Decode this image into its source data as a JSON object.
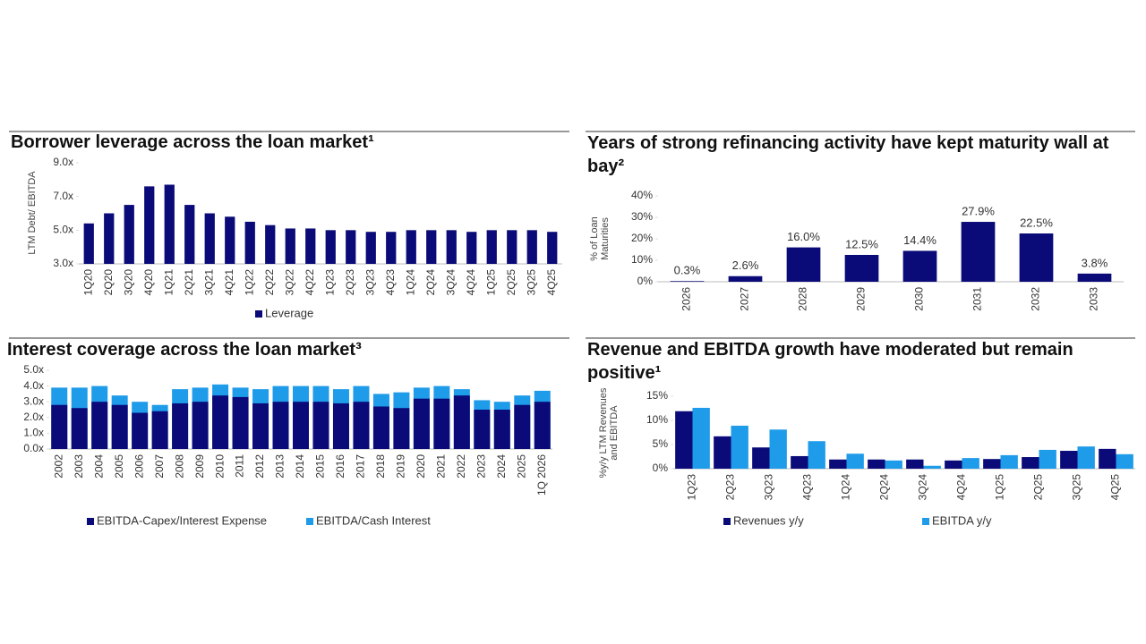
{
  "chart_data": [
    {
      "type": "bar",
      "title": "Borrower leverage across the loan market¹",
      "y_label": "LTM Debt/ EBITDA",
      "categories": [
        "1Q20",
        "2Q20",
        "3Q20",
        "4Q20",
        "1Q21",
        "2Q21",
        "3Q21",
        "4Q21",
        "1Q22",
        "2Q22",
        "3Q22",
        "4Q22",
        "1Q23",
        "2Q23",
        "3Q23",
        "4Q23",
        "1Q24",
        "2Q24",
        "3Q24",
        "4Q24",
        "1Q25",
        "2Q25",
        "3Q25",
        "4Q25"
      ],
      "series": [
        {
          "name": "Leverage",
          "color": "#0a0a78",
          "values": [
            5.4,
            6.0,
            6.5,
            7.6,
            7.7,
            6.5,
            6.0,
            5.8,
            5.5,
            5.3,
            5.1,
            5.1,
            5.0,
            5.0,
            4.9,
            4.9,
            5.0,
            5.0,
            5.0,
            4.9,
            5.0,
            5.0,
            5.0,
            4.9
          ]
        }
      ],
      "ylim": [
        3,
        9
      ],
      "yticks": [
        {
          "value": 3,
          "label": "3.0x"
        },
        {
          "value": 5,
          "label": "5.0x"
        },
        {
          "value": 7,
          "label": "7.0x"
        },
        {
          "value": 9,
          "label": "9.0x"
        }
      ],
      "legend": "bottom"
    },
    {
      "type": "bar",
      "title": "Years of strong refinancing activity have kept maturity wall at bay²",
      "y_label": "% of Loan Maturities",
      "categories": [
        "2026",
        "2027",
        "2028",
        "2029",
        "2030",
        "2031",
        "2032",
        "2033"
      ],
      "values": [
        0.3,
        2.6,
        16.0,
        12.5,
        14.4,
        27.9,
        22.5,
        3.8
      ],
      "value_labels": [
        "0.3%",
        "2.6%",
        "16.0%",
        "12.5%",
        "14.4%",
        "27.9%",
        "22.5%",
        "3.8%"
      ],
      "color": "#0a0a78",
      "ylim": [
        0,
        40
      ],
      "yticks": [
        {
          "value": 0,
          "label": "0%"
        },
        {
          "value": 10,
          "label": "10%"
        },
        {
          "value": 20,
          "label": "20%"
        },
        {
          "value": 30,
          "label": "30%"
        },
        {
          "value": 40,
          "label": "40%"
        }
      ]
    },
    {
      "type": "overlapping_bar",
      "title": "Interest coverage across the loan market³",
      "categories": [
        "2002",
        "2003",
        "2004",
        "2005",
        "2006",
        "2007",
        "2008",
        "2009",
        "2010",
        "2011",
        "2012",
        "2013",
        "2014",
        "2015",
        "2016",
        "2017",
        "2018",
        "2019",
        "2020",
        "2021",
        "2022",
        "2023",
        "2024",
        "2025",
        "1Q 2026"
      ],
      "series": [
        {
          "name": "EBITDA-Capex/Interest Expense",
          "color": "#0a0a78",
          "values": [
            2.8,
            2.6,
            3.0,
            2.8,
            2.3,
            2.4,
            2.9,
            3.0,
            3.4,
            3.3,
            2.9,
            3.0,
            3.0,
            3.0,
            2.9,
            3.0,
            2.7,
            2.6,
            3.2,
            3.2,
            3.4,
            2.5,
            2.5,
            2.8,
            3.0
          ]
        },
        {
          "name": "EBITDA/Cash Interest",
          "color": "#1e9be9",
          "values": [
            3.9,
            3.9,
            4.0,
            3.4,
            3.0,
            2.8,
            3.8,
            3.9,
            4.1,
            3.9,
            3.8,
            4.0,
            4.0,
            4.0,
            3.8,
            4.0,
            3.5,
            3.6,
            3.9,
            4.0,
            3.8,
            3.1,
            3.0,
            3.4,
            3.7
          ]
        }
      ],
      "ylim": [
        0,
        5
      ],
      "yticks": [
        {
          "value": 0,
          "label": "0.0x"
        },
        {
          "value": 1,
          "label": "1.0x"
        },
        {
          "value": 2,
          "label": "2.0x"
        },
        {
          "value": 3,
          "label": "3.0x"
        },
        {
          "value": 4,
          "label": "4.0x"
        },
        {
          "value": 5,
          "label": "5.0x"
        }
      ],
      "legend": "bottom"
    },
    {
      "type": "grouped_bar",
      "title": "Revenue and EBITDA growth have moderated but remain positive¹",
      "y_label": "%y/y LTM Revenues and EBITDA",
      "categories": [
        "1Q23",
        "2Q23",
        "3Q23",
        "4Q23",
        "1Q24",
        "2Q24",
        "3Q24",
        "4Q24",
        "1Q25",
        "2Q25",
        "3Q25",
        "4Q25"
      ],
      "series": [
        {
          "name": "Revenues y/y",
          "color": "#0a0a78",
          "values": [
            11.9,
            6.7,
            4.4,
            2.6,
            1.9,
            1.9,
            1.9,
            1.7,
            2.0,
            2.4,
            3.7,
            4.1
          ]
        },
        {
          "name": "EBITDA y/y",
          "color": "#1e9be9",
          "values": [
            12.6,
            8.9,
            8.1,
            5.7,
            3.1,
            1.7,
            0.6,
            2.2,
            2.8,
            3.9,
            4.6,
            3.0
          ]
        }
      ],
      "ylim": [
        0,
        15
      ],
      "yticks": [
        {
          "value": 0,
          "label": "0%"
        },
        {
          "value": 5,
          "label": "5%"
        },
        {
          "value": 10,
          "label": "10%"
        },
        {
          "value": 15,
          "label": "15%"
        }
      ],
      "legend": "bottom"
    }
  ]
}
